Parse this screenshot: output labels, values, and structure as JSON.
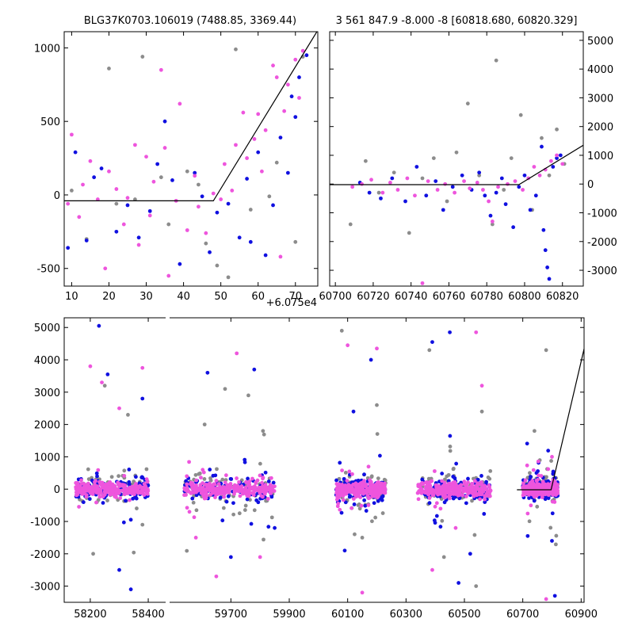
{
  "chart_data": [
    {
      "type": "scatter",
      "title": "BLG37K0703.106019 (7488.85, 3369.44)",
      "xlabel": "",
      "offset_label": "+6.075e4",
      "xlim": [
        8,
        76
      ],
      "ylim": [
        -620,
        1110
      ],
      "xticks": [
        10,
        20,
        30,
        40,
        50,
        60,
        70
      ],
      "yticks": [
        -500,
        0,
        500,
        1000
      ],
      "model_line": {
        "x": [
          8,
          48,
          76
        ],
        "y": [
          -40,
          -40,
          1120
        ]
      },
      "series": [
        {
          "name": "grey",
          "color": "#8c8c8c",
          "points": [
            [
              10,
              30
            ],
            [
              14,
              -300
            ],
            [
              20,
              860
            ],
            [
              22,
              -60
            ],
            [
              27,
              -30
            ],
            [
              29,
              940
            ],
            [
              34,
              120
            ],
            [
              36,
              -200
            ],
            [
              41,
              160
            ],
            [
              44,
              70
            ],
            [
              46,
              -330
            ],
            [
              49,
              -480
            ],
            [
              52,
              -560
            ],
            [
              54,
              990
            ],
            [
              58,
              -100
            ],
            [
              63,
              -10
            ],
            [
              65,
              220
            ],
            [
              70,
              -320
            ],
            [
              72,
              940
            ]
          ]
        },
        {
          "name": "blue",
          "color": "#1010e0",
          "points": [
            [
              9,
              -360
            ],
            [
              11,
              290
            ],
            [
              14,
              -310
            ],
            [
              16,
              120
            ],
            [
              18,
              180
            ],
            [
              22,
              -250
            ],
            [
              25,
              -70
            ],
            [
              28,
              -290
            ],
            [
              31,
              -110
            ],
            [
              33,
              210
            ],
            [
              35,
              500
            ],
            [
              37,
              100
            ],
            [
              39,
              -470
            ],
            [
              43,
              150
            ],
            [
              45,
              -10
            ],
            [
              47,
              -390
            ],
            [
              49,
              -120
            ],
            [
              52,
              -60
            ],
            [
              55,
              -290
            ],
            [
              57,
              110
            ],
            [
              58,
              -320
            ],
            [
              60,
              290
            ],
            [
              62,
              -410
            ],
            [
              64,
              -70
            ],
            [
              66,
              390
            ],
            [
              68,
              150
            ],
            [
              69,
              670
            ],
            [
              70,
              530
            ],
            [
              71,
              800
            ],
            [
              73,
              950
            ]
          ]
        },
        {
          "name": "pink",
          "color": "#ee55dd",
          "points": [
            [
              9,
              -60
            ],
            [
              10,
              410
            ],
            [
              12,
              -150
            ],
            [
              13,
              70
            ],
            [
              15,
              230
            ],
            [
              17,
              -30
            ],
            [
              19,
              -500
            ],
            [
              20,
              160
            ],
            [
              22,
              40
            ],
            [
              24,
              -200
            ],
            [
              25,
              -20
            ],
            [
              27,
              340
            ],
            [
              28,
              -340
            ],
            [
              30,
              260
            ],
            [
              31,
              -140
            ],
            [
              32,
              90
            ],
            [
              34,
              850
            ],
            [
              35,
              320
            ],
            [
              36,
              -550
            ],
            [
              38,
              -40
            ],
            [
              39,
              620
            ],
            [
              41,
              -240
            ],
            [
              43,
              130
            ],
            [
              44,
              -80
            ],
            [
              46,
              -260
            ],
            [
              48,
              10
            ],
            [
              50,
              -30
            ],
            [
              51,
              210
            ],
            [
              53,
              30
            ],
            [
              54,
              340
            ],
            [
              56,
              560
            ],
            [
              57,
              250
            ],
            [
              59,
              380
            ],
            [
              60,
              550
            ],
            [
              61,
              160
            ],
            [
              62,
              440
            ],
            [
              64,
              880
            ],
            [
              65,
              800
            ],
            [
              66,
              -420
            ],
            [
              67,
              570
            ],
            [
              68,
              750
            ],
            [
              70,
              920
            ],
            [
              71,
              660
            ],
            [
              72,
              980
            ]
          ]
        }
      ]
    },
    {
      "type": "scatter",
      "title": "3 561 847.9 -8.000 -8 [60818.680, 60820.329]",
      "xlim": [
        60697,
        60831
      ],
      "ylim": [
        -3550,
        5300
      ],
      "xticks": [
        60700,
        60720,
        60740,
        60760,
        60780,
        60800,
        60820
      ],
      "yticks": [
        -3000,
        -2000,
        -1000,
        0,
        1000,
        2000,
        3000,
        4000,
        5000
      ],
      "yaxis_side": "right",
      "model_line": {
        "x": [
          60697,
          60797,
          60831
        ],
        "y": [
          -20,
          -20,
          1350
        ]
      },
      "series": [
        {
          "name": "grey",
          "color": "#8c8c8c",
          "points": [
            [
              60708,
              -1400
            ],
            [
              60716,
              800
            ],
            [
              60723,
              -300
            ],
            [
              60731,
              400
            ],
            [
              60739,
              -1700
            ],
            [
              60746,
              200
            ],
            [
              60752,
              900
            ],
            [
              60759,
              -600
            ],
            [
              60764,
              1100
            ],
            [
              60770,
              2800
            ],
            [
              60776,
              300
            ],
            [
              60783,
              -1400
            ],
            [
              60785,
              4300
            ],
            [
              60789,
              -200
            ],
            [
              60793,
              900
            ],
            [
              60798,
              2400
            ],
            [
              60804,
              -900
            ],
            [
              60809,
              1600
            ],
            [
              60813,
              300
            ],
            [
              60817,
              1900
            ],
            [
              60821,
              700
            ]
          ]
        },
        {
          "name": "blue",
          "color": "#1010e0",
          "points": [
            [
              60713,
              50
            ],
            [
              60718,
              -300
            ],
            [
              60724,
              -500
            ],
            [
              60730,
              200
            ],
            [
              60737,
              -600
            ],
            [
              60743,
              600
            ],
            [
              60748,
              -400
            ],
            [
              60753,
              100
            ],
            [
              60757,
              -900
            ],
            [
              60762,
              -100
            ],
            [
              60767,
              300
            ],
            [
              60772,
              -200
            ],
            [
              60776,
              400
            ],
            [
              60779,
              -400
            ],
            [
              60782,
              -1100
            ],
            [
              60785,
              -300
            ],
            [
              60788,
              200
            ],
            [
              60790,
              -700
            ],
            [
              60794,
              -1500
            ],
            [
              60797,
              -100
            ],
            [
              60800,
              300
            ],
            [
              60803,
              -900
            ],
            [
              60806,
              -400
            ],
            [
              60809,
              1300
            ],
            [
              60810,
              -1600
            ],
            [
              60811,
              -2300
            ],
            [
              60812,
              -2900
            ],
            [
              60813,
              -3300
            ],
            [
              60815,
              600
            ],
            [
              60817,
              900
            ],
            [
              60819,
              1000
            ]
          ]
        },
        {
          "name": "pink",
          "color": "#ee55dd",
          "points": [
            [
              60709,
              -100
            ],
            [
              60714,
              0
            ],
            [
              60719,
              150
            ],
            [
              60725,
              -300
            ],
            [
              60729,
              50
            ],
            [
              60733,
              -200
            ],
            [
              60738,
              200
            ],
            [
              60742,
              -400
            ],
            [
              60746,
              -3450
            ],
            [
              60749,
              100
            ],
            [
              60754,
              -200
            ],
            [
              60758,
              0
            ],
            [
              60763,
              -300
            ],
            [
              60768,
              100
            ],
            [
              60771,
              -150
            ],
            [
              60775,
              50
            ],
            [
              60778,
              -200
            ],
            [
              60781,
              -600
            ],
            [
              60783,
              -1300
            ],
            [
              60786,
              -100
            ],
            [
              60791,
              0
            ],
            [
              60795,
              100
            ],
            [
              60799,
              -200
            ],
            [
              60802,
              200
            ],
            [
              60805,
              600
            ],
            [
              60808,
              300
            ],
            [
              60811,
              500
            ],
            [
              60814,
              800
            ],
            [
              60817,
              1000
            ],
            [
              60820,
              700
            ]
          ]
        }
      ]
    },
    {
      "type": "scatter",
      "title": "",
      "broken_axis": true,
      "panels": [
        {
          "xlim": [
            58110,
            58460
          ],
          "xticks": [
            58200,
            58400
          ]
        },
        {
          "xlim": [
            59490,
            60910
          ],
          "xticks": [
            59700,
            59900,
            60100,
            60300,
            60500,
            60700,
            60900
          ]
        }
      ],
      "ylim": [
        -3500,
        5300
      ],
      "yticks": [
        -3000,
        -2000,
        -1000,
        0,
        1000,
        2000,
        3000,
        4000,
        5000
      ],
      "model_line": {
        "x": [
          60680,
          60797,
          60935
        ],
        "y": [
          -20,
          -20,
          5300
        ]
      },
      "clusters": [
        {
          "x": [
            58150,
            58400
          ],
          "center": 58275
        },
        {
          "x": [
            59540,
            59850
          ],
          "center": 59695
        },
        {
          "x": [
            60060,
            60230
          ],
          "center": 60145
        },
        {
          "x": [
            60340,
            60590
          ],
          "center": 60465
        },
        {
          "x": [
            60700,
            60820
          ],
          "center": 60760
        }
      ],
      "series": [
        {
          "name": "grey",
          "color": "#8c8c8c",
          "outliers": [
            [
              58210,
              -2000
            ],
            [
              58250,
              3200
            ],
            [
              58330,
              2300
            ],
            [
              58380,
              -1100
            ],
            [
              59610,
              2000
            ],
            [
              59680,
              3100
            ],
            [
              59760,
              2900
            ],
            [
              59810,
              1800
            ],
            [
              60080,
              4900
            ],
            [
              60150,
              -1500
            ],
            [
              60200,
              2600
            ],
            [
              60380,
              4300
            ],
            [
              60430,
              -2100
            ],
            [
              60540,
              -3000
            ],
            [
              60560,
              2400
            ],
            [
              60780,
              4300
            ],
            [
              60740,
              1800
            ]
          ]
        },
        {
          "name": "blue",
          "color": "#1010e0",
          "outliers": [
            [
              58230,
              5050
            ],
            [
              58260,
              3550
            ],
            [
              58300,
              -2500
            ],
            [
              58340,
              -3100
            ],
            [
              58380,
              2800
            ],
            [
              59620,
              3600
            ],
            [
              59700,
              -2100
            ],
            [
              59780,
              3700
            ],
            [
              59850,
              -1200
            ],
            [
              60120,
              2400
            ],
            [
              60180,
              4000
            ],
            [
              60090,
              -1900
            ],
            [
              60390,
              4550
            ],
            [
              60450,
              4850
            ],
            [
              60480,
              -2900
            ],
            [
              60520,
              -2000
            ],
            [
              60800,
              -1600
            ],
            [
              60810,
              -3300
            ]
          ]
        },
        {
          "name": "pink",
          "color": "#ee55dd",
          "outliers": [
            [
              58200,
              3800
            ],
            [
              58240,
              3300
            ],
            [
              58300,
              2500
            ],
            [
              58380,
              3750
            ],
            [
              59580,
              -1500
            ],
            [
              59650,
              -2700
            ],
            [
              59720,
              4200
            ],
            [
              59800,
              -2100
            ],
            [
              60100,
              4450
            ],
            [
              60200,
              4350
            ],
            [
              60150,
              -3200
            ],
            [
              60390,
              -2500
            ],
            [
              60470,
              -1200
            ],
            [
              60540,
              4850
            ],
            [
              60560,
              3200
            ],
            [
              60780,
              -3400
            ],
            [
              60800,
              1000
            ]
          ]
        }
      ]
    }
  ]
}
